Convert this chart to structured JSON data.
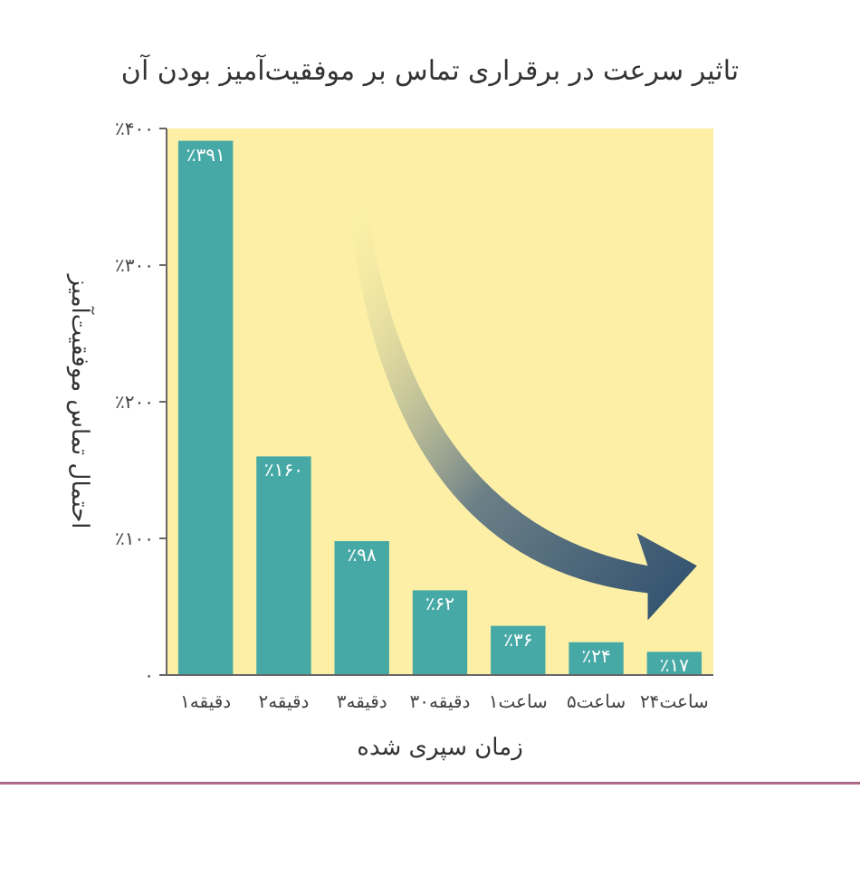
{
  "chart_data": {
    "type": "bar",
    "title": "تاثیر سرعت در برقراری تماس بر موفقیت‌آمیز بودن آن",
    "xlabel": "زمان سپری شده",
    "ylabel": "احتمال تماس موفقیت‌آمیز",
    "categories": [
      "۱دقیقه",
      "۲دقیقه",
      "۳دقیقه",
      "۳۰دقیقه",
      "۱ساعت",
      "۵ساعت",
      "۲۴ساعت"
    ],
    "values": [
      391,
      160,
      98,
      62,
      36,
      24,
      17
    ],
    "value_labels": [
      "٪۳۹۱",
      "٪۱۶۰",
      "٪۹۸",
      "٪۶۲",
      "٪۳۶",
      "٪۲۴",
      "٪۱۷"
    ],
    "color": "#47a9a6",
    "ylim": [
      0,
      400
    ],
    "yticks": [
      {
        "value": 0,
        "label": "۰"
      },
      {
        "value": 100,
        "label": "٪۱۰۰"
      },
      {
        "value": 200,
        "label": "٪۲۰۰"
      },
      {
        "value": 300,
        "label": "٪۳۰۰"
      },
      {
        "value": 400,
        "label": "٪۴۰۰"
      }
    ]
  }
}
